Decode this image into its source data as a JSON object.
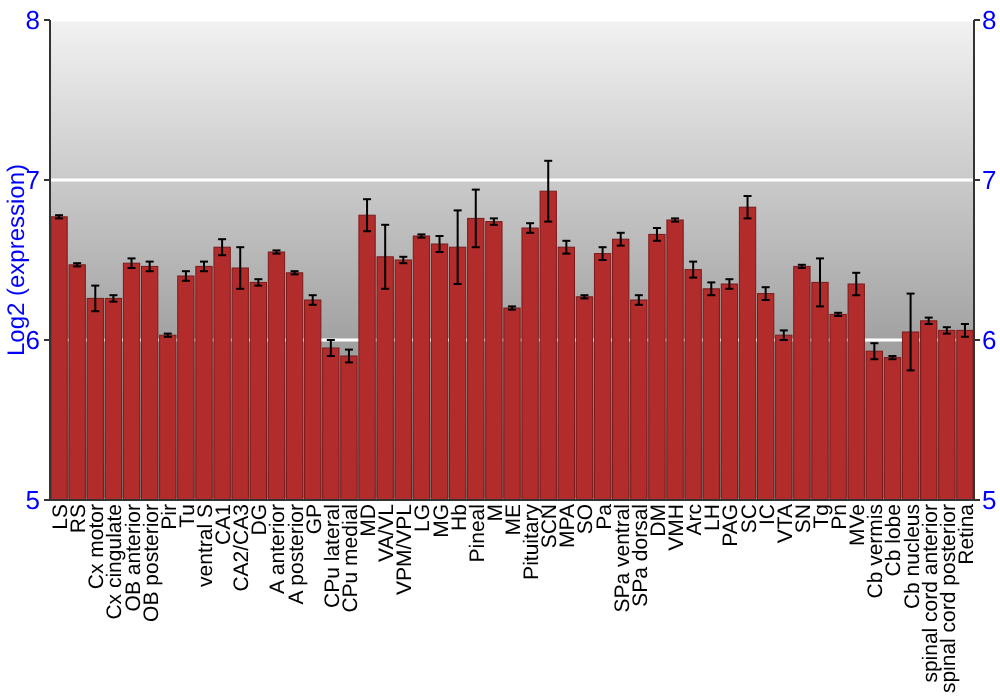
{
  "chart_data": {
    "type": "bar",
    "ylabel": "Log2 (expression)",
    "categories": [
      "LS",
      "RS",
      "Cx motor",
      "Cx cingulate",
      "OB anterior",
      "OB posterior",
      "Pir",
      "Tu",
      "ventral S",
      "CA1",
      "CA2/CA3",
      "DG",
      "A anterior",
      "A posterior",
      "GP",
      "CPu lateral",
      "CPu medial",
      "MD",
      "VA/VL",
      "VPM/VPL",
      "LG",
      "MG",
      "Hb",
      "Pineal",
      "M",
      "ME",
      "Pituitary",
      "SCN",
      "MPA",
      "SO",
      "Pa",
      "SPa ventral",
      "SPa dorsal",
      "DM",
      "VMH",
      "Arc",
      "LH",
      "PAG",
      "SC",
      "IC",
      "VTA",
      "SN",
      "Tg",
      "Pn",
      "MVe",
      "Cb vermis",
      "Cb lobe",
      "Cb nucleus",
      "spinal cord anterior",
      "spinal cord posterior",
      "Retina"
    ],
    "values": [
      6.77,
      6.47,
      6.26,
      6.26,
      6.48,
      6.46,
      6.03,
      6.4,
      6.46,
      6.58,
      6.45,
      6.36,
      6.55,
      6.42,
      6.25,
      5.95,
      5.9,
      6.78,
      6.52,
      6.5,
      6.65,
      6.6,
      6.58,
      6.76,
      6.74,
      6.2,
      6.7,
      6.93,
      6.58,
      6.27,
      6.54,
      6.63,
      6.25,
      6.66,
      6.75,
      6.44,
      6.32,
      6.35,
      6.83,
      6.29,
      6.03,
      6.46,
      6.36,
      6.16,
      6.35,
      5.93,
      5.89,
      6.05,
      6.12,
      6.06,
      6.06
    ],
    "errors": [
      0.01,
      0.01,
      0.08,
      0.02,
      0.03,
      0.03,
      0.01,
      0.03,
      0.03,
      0.05,
      0.13,
      0.02,
      0.01,
      0.01,
      0.03,
      0.05,
      0.04,
      0.1,
      0.2,
      0.02,
      0.01,
      0.05,
      0.23,
      0.18,
      0.02,
      0.01,
      0.03,
      0.19,
      0.04,
      0.01,
      0.04,
      0.04,
      0.03,
      0.04,
      0.01,
      0.05,
      0.04,
      0.03,
      0.07,
      0.04,
      0.03,
      0.01,
      0.15,
      0.01,
      0.07,
      0.05,
      0.01,
      0.24,
      0.02,
      0.02,
      0.04
    ],
    "color": "#b22c2c",
    "ylim": [
      5,
      8
    ],
    "yticks": [
      5,
      6,
      7,
      8
    ],
    "y2lim": [
      5,
      8
    ],
    "y2ticks": [
      5,
      6,
      7,
      8
    ],
    "grid": "y"
  }
}
